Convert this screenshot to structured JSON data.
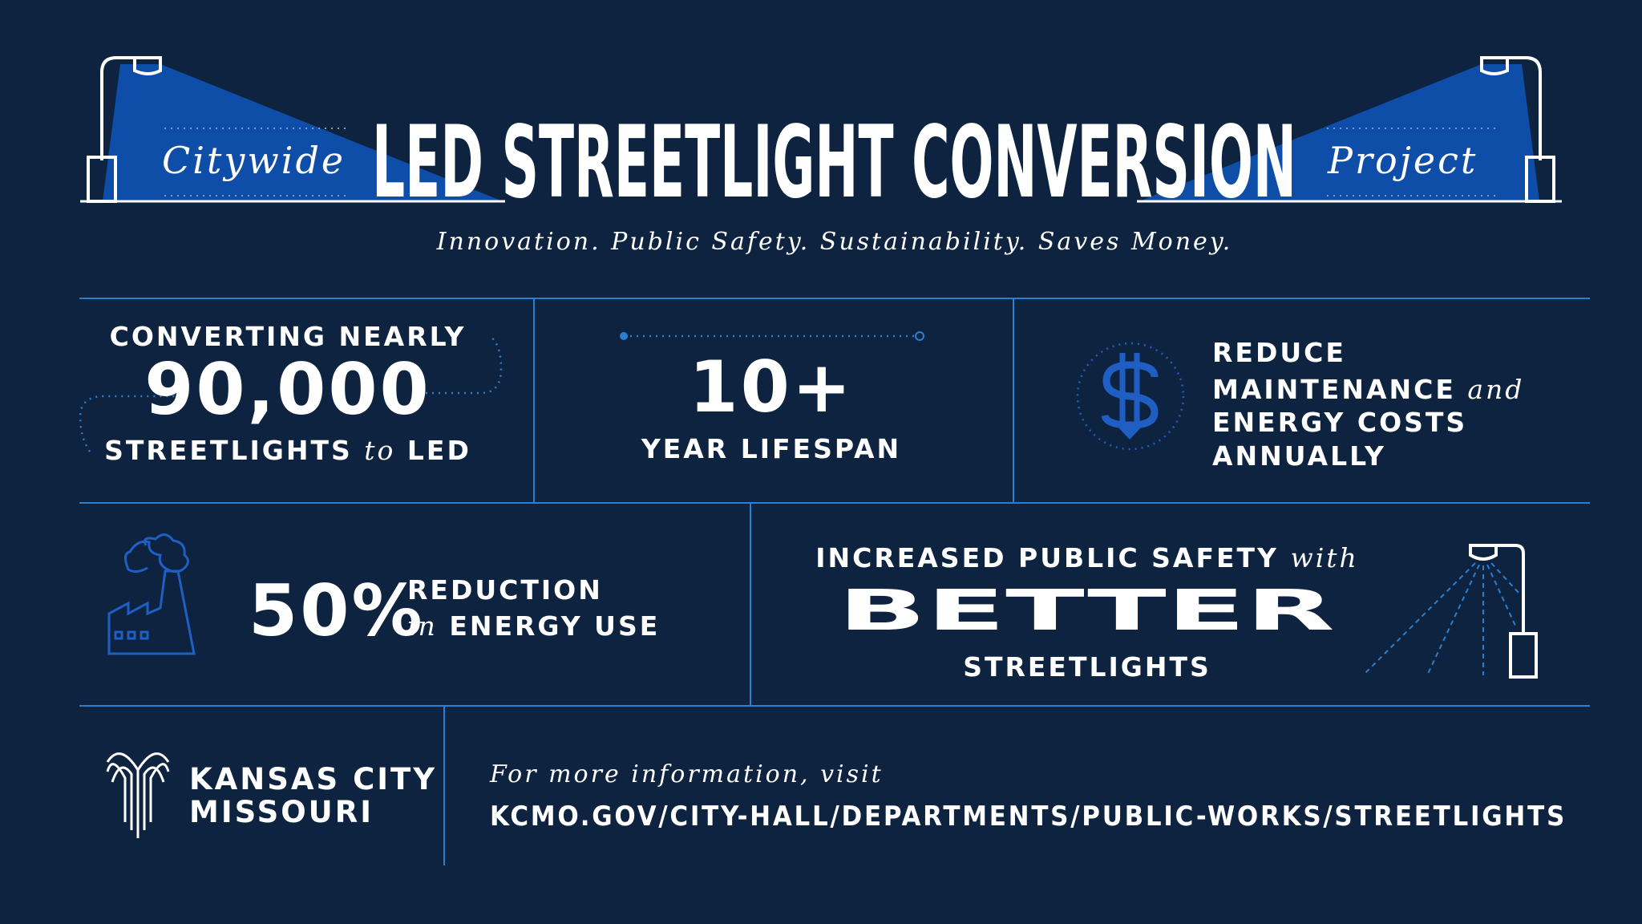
{
  "header": {
    "prefix": "Citywide",
    "title": "LED STREETLIGHT CONVERSION",
    "suffix": "Project",
    "tagline": "Innovation. Public Safety. Sustainability. Saves Money."
  },
  "stats": [
    {
      "lead": "CONVERTING NEARLY",
      "figure": "90,000",
      "caption": "STREETLIGHTS",
      "connector": "to",
      "caption_end": "LED"
    },
    {
      "figure": "10+",
      "caption": "YEAR LIFESPAN"
    },
    {
      "lines": [
        "REDUCE",
        "MAINTENANCE",
        "ENERGY COSTS",
        "ANNUALLY"
      ],
      "connector": "and"
    },
    {
      "figure": "50%",
      "caption": "REDUCTION",
      "connector": "in",
      "caption_end": "ENERGY USE"
    },
    {
      "lead": "INCREASED PUBLIC SAFETY",
      "connector": "with",
      "figure": "BETTER",
      "caption": "STREETLIGHTS"
    }
  ],
  "footer": {
    "org": [
      "KANSAS CITY",
      "MISSOURI"
    ],
    "prompt": "For more information, visit",
    "url": "KCMO.GOV/CITY-HALL/DEPARTMENTS/PUBLIC-WORKS/STREETLIGHTS"
  }
}
